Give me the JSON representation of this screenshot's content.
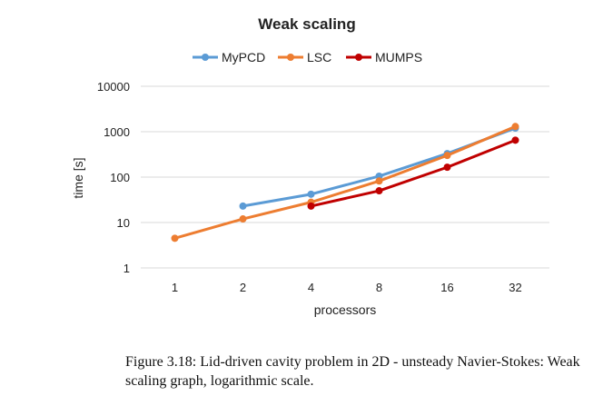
{
  "chart_data": {
    "type": "line",
    "title": "Weak scaling",
    "xlabel": "processors",
    "ylabel": "time [s]",
    "categories": [
      "1",
      "2",
      "4",
      "8",
      "16",
      "32"
    ],
    "y_scale": "log",
    "ylim": [
      1,
      10000
    ],
    "y_ticks": [
      "1",
      "10",
      "100",
      "1000",
      "10000"
    ],
    "grid": "horizontal",
    "legend": "top",
    "series": [
      {
        "name": "MyPCD",
        "color": "#5b9bd5",
        "values": [
          null,
          23,
          42,
          105,
          330,
          1200
        ]
      },
      {
        "name": "LSC",
        "color": "#ed7d31",
        "values": [
          4.5,
          12,
          28,
          82,
          300,
          1300
        ]
      },
      {
        "name": "MUMPS",
        "color": "#c00000",
        "values": [
          null,
          null,
          23,
          50,
          165,
          650
        ]
      }
    ]
  },
  "caption": "Figure 3.18: Lid-driven cavity problem in 2D - unsteady Navier-Stokes: Weak scaling graph, logarithmic scale."
}
